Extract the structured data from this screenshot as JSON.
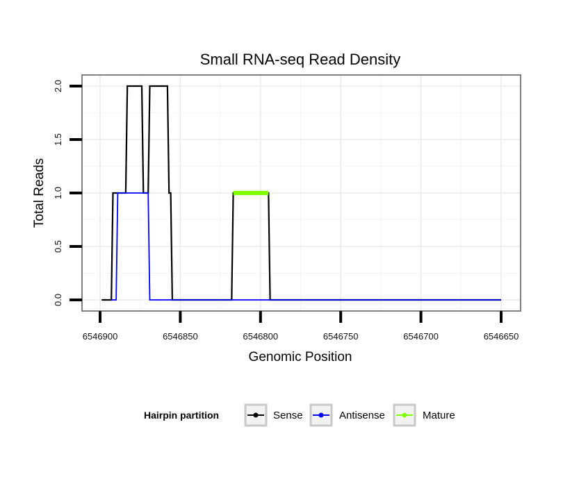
{
  "chart_data": {
    "type": "line",
    "title": "Small RNA-seq Read Density",
    "xlabel": "Genomic Position",
    "ylabel": "Total Reads",
    "xlim": [
      6546900,
      6546650
    ],
    "ylim": [
      0,
      2
    ],
    "x_reversed": true,
    "x_ticks": [
      6546900,
      6546850,
      6546800,
      6546750,
      6546700,
      6546650
    ],
    "x_tick_labels": [
      "6546900",
      "6546850",
      "6546800",
      "6546750",
      "6546700",
      "6546650"
    ],
    "y_ticks": [
      0,
      0.5,
      1,
      1.5,
      2
    ],
    "y_tick_labels": [
      "0.0",
      "0.5",
      "1.0",
      "1.5",
      "2.0"
    ],
    "grid": true,
    "legend": {
      "title": "Hairpin partition",
      "position": "bottom",
      "entries": [
        "Sense",
        "Antisense",
        "Mature"
      ]
    },
    "series": [
      {
        "name": "Sense",
        "color": "#000000",
        "points": [
          [
            6546899,
            0
          ],
          [
            6546893,
            0
          ],
          [
            6546892,
            1
          ],
          [
            6546884,
            1
          ],
          [
            6546883,
            2
          ],
          [
            6546874,
            2
          ],
          [
            6546873,
            1
          ],
          [
            6546870,
            1
          ],
          [
            6546869,
            2
          ],
          [
            6546858,
            2
          ],
          [
            6546857,
            1
          ],
          [
            6546856,
            1
          ],
          [
            6546855,
            0
          ],
          [
            6546818,
            0
          ],
          [
            6546817,
            1
          ],
          [
            6546795,
            1
          ],
          [
            6546794,
            0
          ],
          [
            6546650,
            0
          ]
        ]
      },
      {
        "name": "Antisense",
        "color": "#0000ff",
        "points": [
          [
            6546893,
            0
          ],
          [
            6546890,
            0
          ],
          [
            6546889,
            1
          ],
          [
            6546870,
            1
          ],
          [
            6546869,
            0
          ],
          [
            6546818,
            0
          ],
          [
            6546794,
            0
          ],
          [
            6546650,
            0
          ]
        ]
      },
      {
        "name": "Mature",
        "color": "#7fff00",
        "points": [
          [
            6546817,
            1
          ],
          [
            6546795,
            1
          ]
        ]
      }
    ]
  }
}
